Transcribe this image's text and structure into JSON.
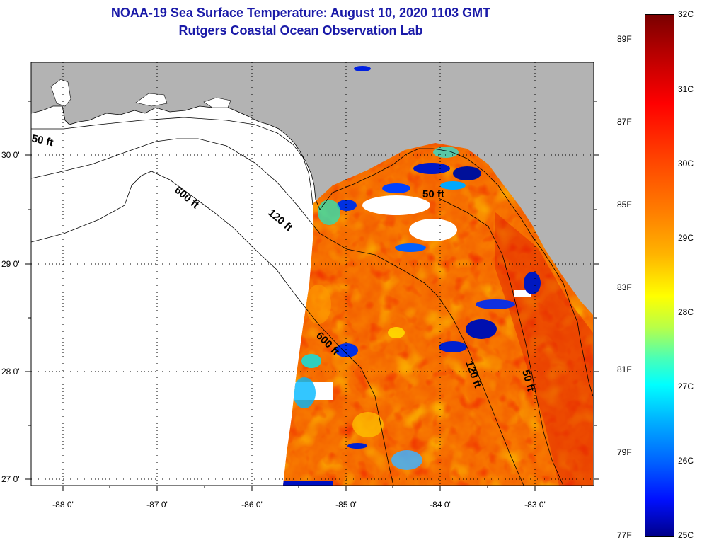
{
  "title": {
    "line1": "NOAA-19 Sea Surface Temperature:  August 10, 2020 1103 GMT",
    "line2": "Rutgers Coastal Ocean Observation Lab"
  },
  "map": {
    "lon_labels": [
      "-88 0'",
      "-87 0'",
      "-86 0'",
      "-85 0'",
      "-84 0'",
      "-83 0'"
    ],
    "lat_labels": [
      "30 0'",
      "29 0'",
      "28 0'",
      "27 0'"
    ],
    "contour_labels": [
      "50 ft",
      "600 ft",
      "120 ft",
      "50 ft",
      "600 ft",
      "120 ft",
      "50 ft"
    ],
    "colors": {
      "land": "#b3b3b3",
      "no_data_water": "#ffffff",
      "contour_line": "#000000",
      "grid": "#000000"
    }
  },
  "colorbar": {
    "range_c": [
      25,
      32
    ],
    "range_f": [
      77,
      89.6
    ],
    "celsius_labels": [
      "32C",
      "31C",
      "30C",
      "29C",
      "28C",
      "27C",
      "26C",
      "25C"
    ],
    "fahrenheit_labels": [
      "89F",
      "87F",
      "85F",
      "83F",
      "81F",
      "79F",
      "77F"
    ]
  }
}
